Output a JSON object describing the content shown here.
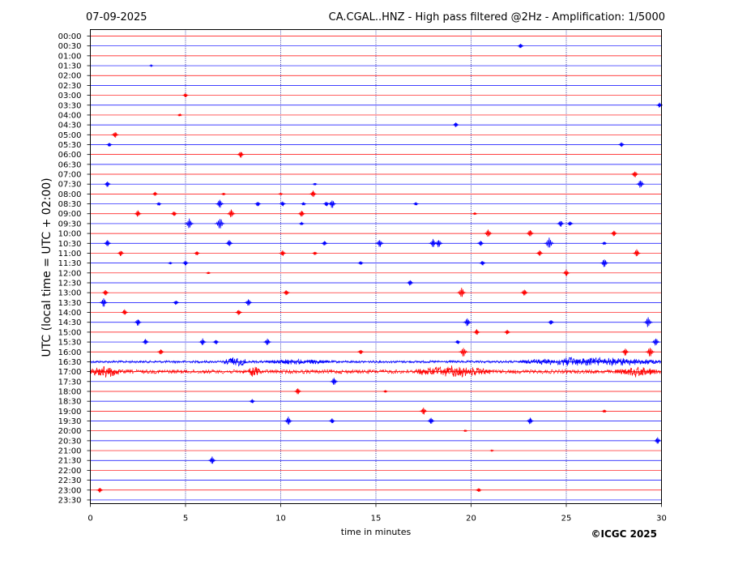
{
  "header": {
    "date": "07-09-2025",
    "title": "CA.CGAL..HNZ - High pass filtered @2Hz - Amplification: 1/5000"
  },
  "footer": {
    "copyright": "©ICGC 2025"
  },
  "colors": {
    "trace_a": "#ff0000",
    "trace_b": "#0000ff",
    "grid": "#00008b",
    "frame": "#000000"
  },
  "chart_data": {
    "type": "line",
    "title": "CA.CGAL..HNZ - High pass filtered @2Hz - Amplification: 1/5000",
    "xlabel": "time in minutes",
    "ylabel": "UTC (local time = UTC + 02:00)",
    "xlim": [
      0,
      30
    ],
    "xticks": [
      0,
      5,
      10,
      15,
      20,
      25,
      30
    ],
    "grid": "vertical dotted at 5-minute ticks",
    "row_labels": [
      "00:00",
      "00:30",
      "01:00",
      "01:30",
      "02:00",
      "02:30",
      "03:00",
      "03:30",
      "04:00",
      "04:30",
      "05:00",
      "05:30",
      "06:00",
      "06:30",
      "07:00",
      "07:30",
      "08:00",
      "08:30",
      "09:00",
      "09:30",
      "10:00",
      "10:30",
      "11:00",
      "11:30",
      "12:00",
      "12:30",
      "13:00",
      "13:30",
      "14:00",
      "14:30",
      "15:00",
      "15:30",
      "16:00",
      "16:30",
      "17:00",
      "17:30",
      "18:00",
      "18:30",
      "19:00",
      "19:30",
      "20:00",
      "20:30",
      "21:00",
      "21:30",
      "22:00",
      "22:30",
      "23:00",
      "23:30"
    ],
    "row_colors": "alternating red (even rows) / blue (odd rows)",
    "events": [
      {
        "row": "00:30",
        "minute": 22.6,
        "amplitude": 0.6
      },
      {
        "row": "01:30",
        "minute": 3.2,
        "amplitude": 0.15
      },
      {
        "row": "03:00",
        "minute": 5.0,
        "amplitude": 0.5
      },
      {
        "row": "03:30",
        "minute": 29.9,
        "amplitude": 0.6
      },
      {
        "row": "04:00",
        "minute": 4.7,
        "amplitude": 0.3
      },
      {
        "row": "04:30",
        "minute": 19.2,
        "amplitude": 0.6
      },
      {
        "row": "05:00",
        "minute": 1.3,
        "amplitude": 0.8
      },
      {
        "row": "05:30",
        "minute": 1.0,
        "amplitude": 0.5
      },
      {
        "row": "05:30",
        "minute": 27.9,
        "amplitude": 0.6
      },
      {
        "row": "06:00",
        "minute": 7.9,
        "amplitude": 0.8
      },
      {
        "row": "07:00",
        "minute": 28.6,
        "amplitude": 0.8
      },
      {
        "row": "07:30",
        "minute": 0.9,
        "amplitude": 0.7
      },
      {
        "row": "07:30",
        "minute": 11.8,
        "amplitude": 0.3
      },
      {
        "row": "07:30",
        "minute": 28.9,
        "amplitude": 1.0
      },
      {
        "row": "08:00",
        "minute": 3.4,
        "amplitude": 0.5
      },
      {
        "row": "08:00",
        "minute": 7.0,
        "amplitude": 0.3
      },
      {
        "row": "08:00",
        "minute": 10.0,
        "amplitude": 0.3
      },
      {
        "row": "08:00",
        "minute": 11.7,
        "amplitude": 0.8
      },
      {
        "row": "08:30",
        "minute": 3.6,
        "amplitude": 0.4
      },
      {
        "row": "08:30",
        "minute": 6.8,
        "amplitude": 1.0
      },
      {
        "row": "08:30",
        "minute": 8.8,
        "amplitude": 0.6
      },
      {
        "row": "08:30",
        "minute": 10.1,
        "amplitude": 0.6
      },
      {
        "row": "08:30",
        "minute": 11.2,
        "amplitude": 0.4
      },
      {
        "row": "08:30",
        "minute": 12.4,
        "amplitude": 0.6
      },
      {
        "row": "08:30",
        "minute": 12.7,
        "amplitude": 1.0
      },
      {
        "row": "08:30",
        "minute": 17.1,
        "amplitude": 0.4
      },
      {
        "row": "09:00",
        "minute": 2.5,
        "amplitude": 0.8
      },
      {
        "row": "09:00",
        "minute": 4.4,
        "amplitude": 0.6
      },
      {
        "row": "09:00",
        "minute": 7.4,
        "amplitude": 1.0
      },
      {
        "row": "09:00",
        "minute": 11.1,
        "amplitude": 0.8
      },
      {
        "row": "09:00",
        "minute": 20.2,
        "amplitude": 0.3
      },
      {
        "row": "09:30",
        "minute": 5.2,
        "amplitude": 1.2
      },
      {
        "row": "09:30",
        "minute": 6.8,
        "amplitude": 1.4
      },
      {
        "row": "09:30",
        "minute": 11.1,
        "amplitude": 0.4
      },
      {
        "row": "09:30",
        "minute": 24.7,
        "amplitude": 0.8
      },
      {
        "row": "09:30",
        "minute": 25.2,
        "amplitude": 0.6
      },
      {
        "row": "10:00",
        "minute": 20.9,
        "amplitude": 1.0
      },
      {
        "row": "10:00",
        "minute": 23.1,
        "amplitude": 0.9
      },
      {
        "row": "10:00",
        "minute": 27.5,
        "amplitude": 0.7
      },
      {
        "row": "10:30",
        "minute": 0.9,
        "amplitude": 0.8
      },
      {
        "row": "10:30",
        "minute": 7.3,
        "amplitude": 0.8
      },
      {
        "row": "10:30",
        "minute": 12.3,
        "amplitude": 0.6
      },
      {
        "row": "10:30",
        "minute": 15.2,
        "amplitude": 1.0
      },
      {
        "row": "10:30",
        "minute": 18.0,
        "amplitude": 1.0
      },
      {
        "row": "10:30",
        "minute": 18.3,
        "amplitude": 1.0
      },
      {
        "row": "10:30",
        "minute": 20.5,
        "amplitude": 0.7
      },
      {
        "row": "10:30",
        "minute": 24.1,
        "amplitude": 1.4
      },
      {
        "row": "10:30",
        "minute": 27.0,
        "amplitude": 0.4
      },
      {
        "row": "11:00",
        "minute": 1.6,
        "amplitude": 0.7
      },
      {
        "row": "11:00",
        "minute": 5.6,
        "amplitude": 0.5
      },
      {
        "row": "11:00",
        "minute": 10.1,
        "amplitude": 0.7
      },
      {
        "row": "11:00",
        "minute": 11.8,
        "amplitude": 0.4
      },
      {
        "row": "11:00",
        "minute": 23.6,
        "amplitude": 0.7
      },
      {
        "row": "11:00",
        "minute": 28.7,
        "amplitude": 0.9
      },
      {
        "row": "11:30",
        "minute": 4.2,
        "amplitude": 0.3
      },
      {
        "row": "11:30",
        "minute": 5.0,
        "amplitude": 0.6
      },
      {
        "row": "11:30",
        "minute": 14.2,
        "amplitude": 0.5
      },
      {
        "row": "11:30",
        "minute": 20.6,
        "amplitude": 0.6
      },
      {
        "row": "11:30",
        "minute": 27.0,
        "amplitude": 1.0
      },
      {
        "row": "12:00",
        "minute": 6.2,
        "amplitude": 0.3
      },
      {
        "row": "12:00",
        "minute": 25.0,
        "amplitude": 0.8
      },
      {
        "row": "12:30",
        "minute": 16.8,
        "amplitude": 0.7
      },
      {
        "row": "13:00",
        "minute": 0.8,
        "amplitude": 0.7
      },
      {
        "row": "13:00",
        "minute": 10.3,
        "amplitude": 0.7
      },
      {
        "row": "13:00",
        "minute": 19.5,
        "amplitude": 1.2
      },
      {
        "row": "13:00",
        "minute": 22.8,
        "amplitude": 0.8
      },
      {
        "row": "13:30",
        "minute": 0.7,
        "amplitude": 1.0
      },
      {
        "row": "13:30",
        "minute": 4.5,
        "amplitude": 0.6
      },
      {
        "row": "13:30",
        "minute": 8.3,
        "amplitude": 0.9
      },
      {
        "row": "14:00",
        "minute": 1.8,
        "amplitude": 0.7
      },
      {
        "row": "14:00",
        "minute": 7.8,
        "amplitude": 0.7
      },
      {
        "row": "14:30",
        "minute": 2.5,
        "amplitude": 0.8
      },
      {
        "row": "14:30",
        "minute": 19.8,
        "amplitude": 1.0
      },
      {
        "row": "14:30",
        "minute": 24.2,
        "amplitude": 0.6
      },
      {
        "row": "14:30",
        "minute": 29.3,
        "amplitude": 1.2
      },
      {
        "row": "15:00",
        "minute": 20.3,
        "amplitude": 0.7
      },
      {
        "row": "15:00",
        "minute": 21.9,
        "amplitude": 0.6
      },
      {
        "row": "15:30",
        "minute": 2.9,
        "amplitude": 0.7
      },
      {
        "row": "15:30",
        "minute": 5.9,
        "amplitude": 0.8
      },
      {
        "row": "15:30",
        "minute": 6.6,
        "amplitude": 0.6
      },
      {
        "row": "15:30",
        "minute": 9.3,
        "amplitude": 0.9
      },
      {
        "row": "15:30",
        "minute": 19.3,
        "amplitude": 0.5
      },
      {
        "row": "15:30",
        "minute": 29.7,
        "amplitude": 1.0
      },
      {
        "row": "16:00",
        "minute": 3.7,
        "amplitude": 0.7
      },
      {
        "row": "16:00",
        "minute": 14.2,
        "amplitude": 0.6
      },
      {
        "row": "16:00",
        "minute": 19.6,
        "amplitude": 1.2
      },
      {
        "row": "16:00",
        "minute": 28.1,
        "amplitude": 0.9
      },
      {
        "row": "16:00",
        "minute": 29.4,
        "amplitude": 1.2
      },
      {
        "row": "17:30",
        "minute": 12.8,
        "amplitude": 0.9
      },
      {
        "row": "18:00",
        "minute": 10.9,
        "amplitude": 0.8
      },
      {
        "row": "18:00",
        "minute": 15.5,
        "amplitude": 0.3
      },
      {
        "row": "18:30",
        "minute": 8.5,
        "amplitude": 0.5
      },
      {
        "row": "19:00",
        "minute": 17.5,
        "amplitude": 0.9
      },
      {
        "row": "19:00",
        "minute": 27.0,
        "amplitude": 0.4
      },
      {
        "row": "19:30",
        "minute": 10.4,
        "amplitude": 1.0
      },
      {
        "row": "19:30",
        "minute": 12.7,
        "amplitude": 0.6
      },
      {
        "row": "19:30",
        "minute": 17.9,
        "amplitude": 0.8
      },
      {
        "row": "19:30",
        "minute": 23.1,
        "amplitude": 0.8
      },
      {
        "row": "20:00",
        "minute": 19.7,
        "amplitude": 0.2
      },
      {
        "row": "20:30",
        "minute": 29.8,
        "amplitude": 0.8
      },
      {
        "row": "21:00",
        "minute": 21.1,
        "amplitude": 0.15
      },
      {
        "row": "21:30",
        "minute": 6.4,
        "amplitude": 0.9
      },
      {
        "row": "23:00",
        "minute": 0.5,
        "amplitude": 0.6
      },
      {
        "row": "23:00",
        "minute": 20.4,
        "amplitude": 0.5
      }
    ],
    "noise_bursts": [
      {
        "row": "16:30",
        "from": 7.0,
        "to": 8.2,
        "amplitude": 1.4
      },
      {
        "row": "16:30",
        "from": 9.2,
        "to": 12.6,
        "amplitude": 0.7
      },
      {
        "row": "16:30",
        "from": 22.5,
        "to": 30.0,
        "amplitude": 1.2
      },
      {
        "row": "17:00",
        "from": 0.0,
        "to": 1.6,
        "amplitude": 1.6
      },
      {
        "row": "17:00",
        "from": 8.3,
        "to": 8.9,
        "amplitude": 1.6
      },
      {
        "row": "17:00",
        "from": 17.0,
        "to": 21.0,
        "amplitude": 1.5
      },
      {
        "row": "17:00",
        "from": 27.6,
        "to": 29.7,
        "amplitude": 1.3
      }
    ],
    "background_noise": [
      {
        "row": "16:30",
        "amplitude": 0.3
      },
      {
        "row": "17:00",
        "amplitude": 0.45
      }
    ]
  }
}
